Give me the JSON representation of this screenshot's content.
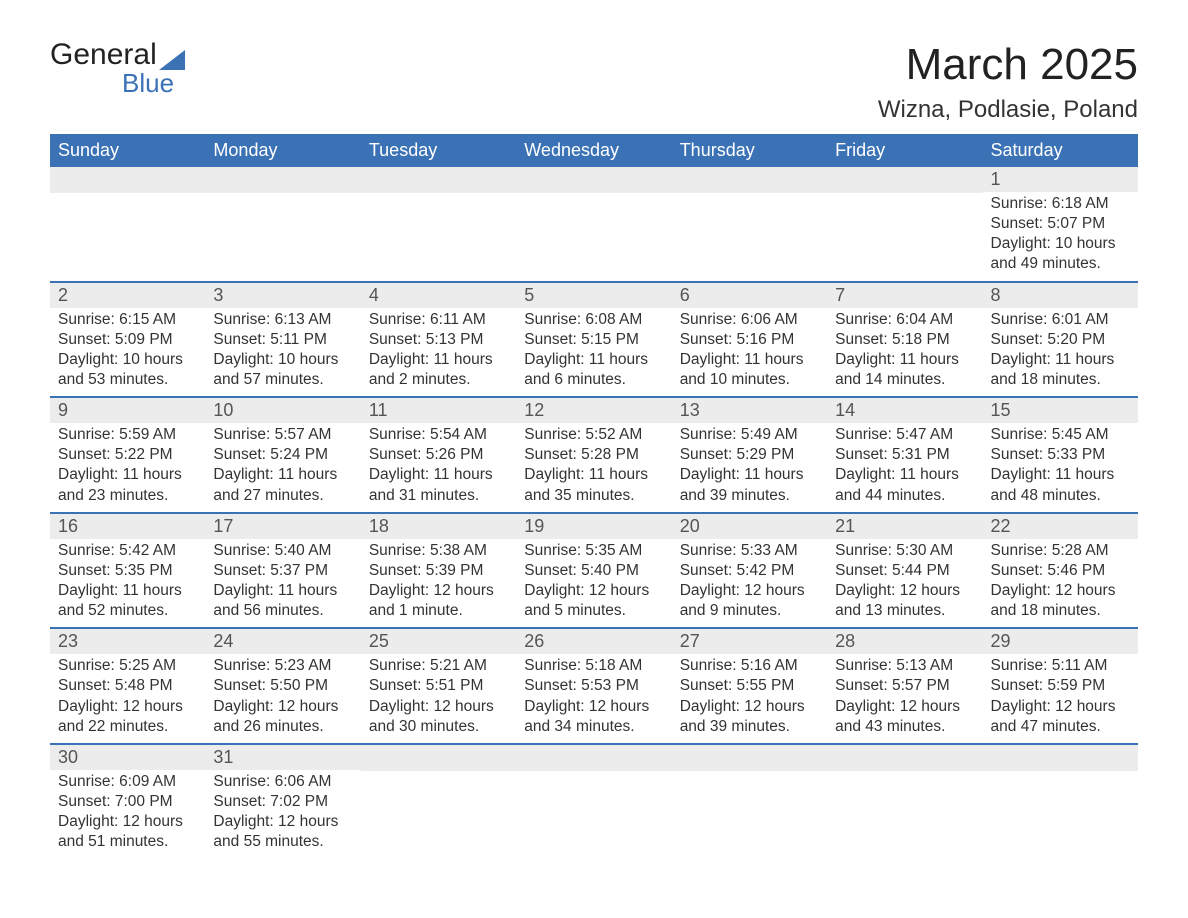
{
  "logo": {
    "line1": "General",
    "line2": "Blue"
  },
  "title": "March 2025",
  "location": "Wizna, Podlasie, Poland",
  "day_headers": [
    "Sunday",
    "Monday",
    "Tuesday",
    "Wednesday",
    "Thursday",
    "Friday",
    "Saturday"
  ],
  "colors": {
    "header_bg": "#3b72b5",
    "header_fg": "#ffffff",
    "row_border": "#3b72b5",
    "daynum_bg": "#ececec",
    "text": "#333333"
  },
  "weeks": [
    [
      null,
      null,
      null,
      null,
      null,
      null,
      {
        "n": "1",
        "sunrise": "6:18 AM",
        "sunset": "5:07 PM",
        "daylight": "10 hours and 49 minutes."
      }
    ],
    [
      {
        "n": "2",
        "sunrise": "6:15 AM",
        "sunset": "5:09 PM",
        "daylight": "10 hours and 53 minutes."
      },
      {
        "n": "3",
        "sunrise": "6:13 AM",
        "sunset": "5:11 PM",
        "daylight": "10 hours and 57 minutes."
      },
      {
        "n": "4",
        "sunrise": "6:11 AM",
        "sunset": "5:13 PM",
        "daylight": "11 hours and 2 minutes."
      },
      {
        "n": "5",
        "sunrise": "6:08 AM",
        "sunset": "5:15 PM",
        "daylight": "11 hours and 6 minutes."
      },
      {
        "n": "6",
        "sunrise": "6:06 AM",
        "sunset": "5:16 PM",
        "daylight": "11 hours and 10 minutes."
      },
      {
        "n": "7",
        "sunrise": "6:04 AM",
        "sunset": "5:18 PM",
        "daylight": "11 hours and 14 minutes."
      },
      {
        "n": "8",
        "sunrise": "6:01 AM",
        "sunset": "5:20 PM",
        "daylight": "11 hours and 18 minutes."
      }
    ],
    [
      {
        "n": "9",
        "sunrise": "5:59 AM",
        "sunset": "5:22 PM",
        "daylight": "11 hours and 23 minutes."
      },
      {
        "n": "10",
        "sunrise": "5:57 AM",
        "sunset": "5:24 PM",
        "daylight": "11 hours and 27 minutes."
      },
      {
        "n": "11",
        "sunrise": "5:54 AM",
        "sunset": "5:26 PM",
        "daylight": "11 hours and 31 minutes."
      },
      {
        "n": "12",
        "sunrise": "5:52 AM",
        "sunset": "5:28 PM",
        "daylight": "11 hours and 35 minutes."
      },
      {
        "n": "13",
        "sunrise": "5:49 AM",
        "sunset": "5:29 PM",
        "daylight": "11 hours and 39 minutes."
      },
      {
        "n": "14",
        "sunrise": "5:47 AM",
        "sunset": "5:31 PM",
        "daylight": "11 hours and 44 minutes."
      },
      {
        "n": "15",
        "sunrise": "5:45 AM",
        "sunset": "5:33 PM",
        "daylight": "11 hours and 48 minutes."
      }
    ],
    [
      {
        "n": "16",
        "sunrise": "5:42 AM",
        "sunset": "5:35 PM",
        "daylight": "11 hours and 52 minutes."
      },
      {
        "n": "17",
        "sunrise": "5:40 AM",
        "sunset": "5:37 PM",
        "daylight": "11 hours and 56 minutes."
      },
      {
        "n": "18",
        "sunrise": "5:38 AM",
        "sunset": "5:39 PM",
        "daylight": "12 hours and 1 minute."
      },
      {
        "n": "19",
        "sunrise": "5:35 AM",
        "sunset": "5:40 PM",
        "daylight": "12 hours and 5 minutes."
      },
      {
        "n": "20",
        "sunrise": "5:33 AM",
        "sunset": "5:42 PM",
        "daylight": "12 hours and 9 minutes."
      },
      {
        "n": "21",
        "sunrise": "5:30 AM",
        "sunset": "5:44 PM",
        "daylight": "12 hours and 13 minutes."
      },
      {
        "n": "22",
        "sunrise": "5:28 AM",
        "sunset": "5:46 PM",
        "daylight": "12 hours and 18 minutes."
      }
    ],
    [
      {
        "n": "23",
        "sunrise": "5:25 AM",
        "sunset": "5:48 PM",
        "daylight": "12 hours and 22 minutes."
      },
      {
        "n": "24",
        "sunrise": "5:23 AM",
        "sunset": "5:50 PM",
        "daylight": "12 hours and 26 minutes."
      },
      {
        "n": "25",
        "sunrise": "5:21 AM",
        "sunset": "5:51 PM",
        "daylight": "12 hours and 30 minutes."
      },
      {
        "n": "26",
        "sunrise": "5:18 AM",
        "sunset": "5:53 PM",
        "daylight": "12 hours and 34 minutes."
      },
      {
        "n": "27",
        "sunrise": "5:16 AM",
        "sunset": "5:55 PM",
        "daylight": "12 hours and 39 minutes."
      },
      {
        "n": "28",
        "sunrise": "5:13 AM",
        "sunset": "5:57 PM",
        "daylight": "12 hours and 43 minutes."
      },
      {
        "n": "29",
        "sunrise": "5:11 AM",
        "sunset": "5:59 PM",
        "daylight": "12 hours and 47 minutes."
      }
    ],
    [
      {
        "n": "30",
        "sunrise": "6:09 AM",
        "sunset": "7:00 PM",
        "daylight": "12 hours and 51 minutes."
      },
      {
        "n": "31",
        "sunrise": "6:06 AM",
        "sunset": "7:02 PM",
        "daylight": "12 hours and 55 minutes."
      },
      null,
      null,
      null,
      null,
      null
    ]
  ],
  "labels": {
    "sunrise": "Sunrise: ",
    "sunset": "Sunset: ",
    "daylight": "Daylight: "
  }
}
